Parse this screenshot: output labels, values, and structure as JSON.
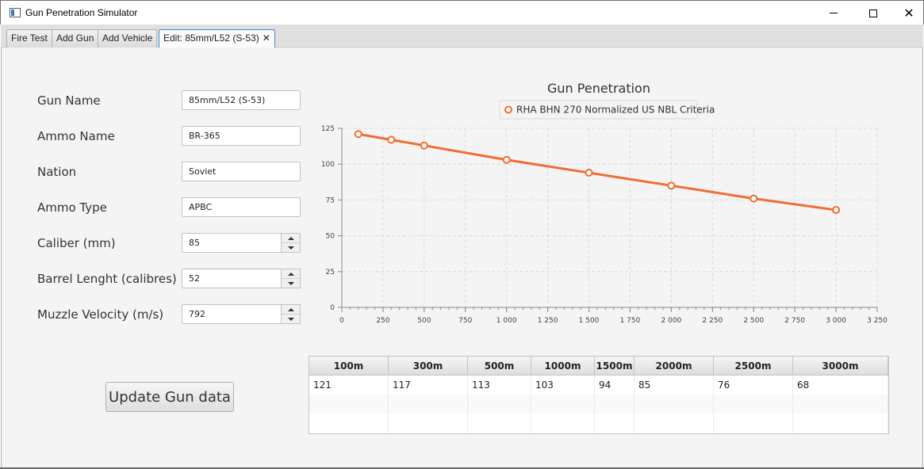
{
  "window": {
    "title": "Gun Penetration Simulator"
  },
  "tabs": [
    {
      "label": "Fire Test"
    },
    {
      "label": "Add Gun"
    },
    {
      "label": "Add Vehicle"
    },
    {
      "label": "Edit: 85mm/L52 (S-53)",
      "active": true
    }
  ],
  "form": {
    "gun_name": {
      "label": "Gun Name",
      "value": "85mm/L52 (S-53)"
    },
    "ammo_name": {
      "label": "Ammo Name",
      "value": "BR-365"
    },
    "nation": {
      "label": "Nation",
      "value": "Soviet"
    },
    "ammo_type": {
      "label": "Ammo Type",
      "value": "APBC"
    },
    "caliber": {
      "label": "Caliber (mm)",
      "value": "85"
    },
    "barrel_length": {
      "label": "Barrel Lenght (calibres)",
      "value": "52"
    },
    "muzzle_velocity": {
      "label": "Muzzle Velocity (m/s)",
      "value": "792"
    },
    "update_label": "Update Gun data"
  },
  "chart_data": {
    "type": "line",
    "title": "Gun Penetration",
    "xlabel": "",
    "ylabel": "",
    "xlim": [
      0,
      3250
    ],
    "ylim": [
      0,
      125
    ],
    "x_ticks": [
      0,
      250,
      500,
      750,
      1000,
      1250,
      1500,
      1750,
      2000,
      2250,
      2500,
      2750,
      3000,
      3250
    ],
    "x_tick_labels": [
      "0",
      "250",
      "500",
      "750",
      "1 000",
      "1 250",
      "1 500",
      "1 750",
      "2 000",
      "2 250",
      "2 500",
      "2 750",
      "3 000",
      "3 250"
    ],
    "y_ticks": [
      0,
      25,
      50,
      75,
      100,
      125
    ],
    "y_tick_labels": [
      "0",
      "25",
      "50",
      "75",
      "100",
      "125"
    ],
    "grid": true,
    "legend_position": "top",
    "series": [
      {
        "name": "RHA BHN 270 Normalized US NBL Criteria",
        "color": "#f06d34",
        "x": [
          100,
          300,
          500,
          1000,
          1500,
          2000,
          2500,
          3000
        ],
        "y": [
          121,
          117,
          113,
          103,
          94,
          85,
          76,
          68
        ]
      }
    ]
  },
  "table": {
    "columns": [
      "100m",
      "300m",
      "500m",
      "1000m",
      "1500m",
      "2000m",
      "2500m",
      "3000m"
    ],
    "rows": [
      [
        "121",
        "117",
        "113",
        "103",
        "94",
        "85",
        "76",
        "68"
      ],
      [
        "",
        "",
        "",
        "",
        "",
        "",
        "",
        ""
      ],
      [
        "",
        "",
        "",
        "",
        "",
        "",
        "",
        ""
      ]
    ]
  }
}
